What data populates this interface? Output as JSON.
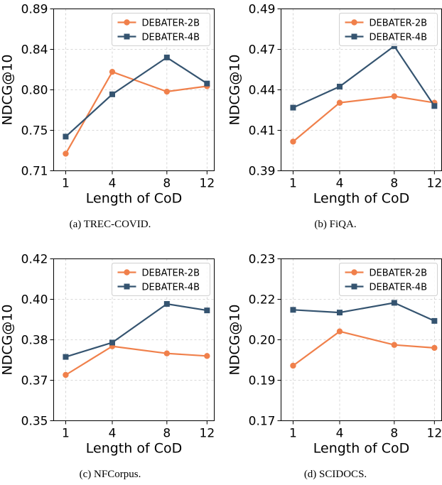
{
  "chart_data": [
    {
      "type": "line",
      "caption": "(a)  TREC-COVID.",
      "xlabel": "Length of CoD",
      "ylabel": "NDCG@10",
      "categories": [
        "1",
        "4",
        "8",
        "12"
      ],
      "ylim": [
        0.71,
        0.89
      ],
      "yticks": [
        "0.71",
        "0.75",
        "0.80",
        "0.84",
        "0.89"
      ],
      "grid": true,
      "legend": "top-right",
      "series": [
        {
          "name": "DEBATER-2B",
          "color": "#f0804b",
          "marker": "circle",
          "values": [
            0.729,
            0.82,
            0.798,
            0.804
          ]
        },
        {
          "name": "DEBATER-4B",
          "color": "#355470",
          "marker": "square",
          "values": [
            0.748,
            0.795,
            0.836,
            0.807
          ]
        }
      ]
    },
    {
      "type": "line",
      "caption": "(b)  FiQA.",
      "xlabel": "Length of CoD",
      "ylabel": "NDCG@10",
      "categories": [
        "1",
        "4",
        "8",
        "12"
      ],
      "ylim": [
        0.39,
        0.49
      ],
      "yticks": [
        "0.39",
        "0.41",
        "0.44",
        "0.47",
        "0.49"
      ],
      "grid": true,
      "legend": "top-right",
      "series": [
        {
          "name": "DEBATER-2B",
          "color": "#f0804b",
          "marker": "circle",
          "values": [
            0.408,
            0.432,
            0.436,
            0.432
          ]
        },
        {
          "name": "DEBATER-4B",
          "color": "#355470",
          "marker": "square",
          "values": [
            0.429,
            0.442,
            0.467,
            0.43
          ]
        }
      ]
    },
    {
      "type": "line",
      "caption": "(c)  NFCorpus.",
      "xlabel": "Length of CoD",
      "ylabel": "NDCG@10",
      "categories": [
        "1",
        "4",
        "8",
        "12"
      ],
      "ylim": [
        0.35,
        0.42
      ],
      "yticks": [
        "0.35",
        "0.37",
        "0.38",
        "0.40",
        "0.42"
      ],
      "grid": true,
      "legend": "top-right",
      "series": [
        {
          "name": "DEBATER-2B",
          "color": "#f0804b",
          "marker": "circle",
          "values": [
            0.3698,
            0.3822,
            0.3791,
            0.378
          ]
        },
        {
          "name": "DEBATER-4B",
          "color": "#355470",
          "marker": "square",
          "values": [
            0.3776,
            0.3838,
            0.4005,
            0.3977
          ]
        }
      ]
    },
    {
      "type": "line",
      "caption": "(d)  SCIDOCS.",
      "xlabel": "Length of CoD",
      "ylabel": "NDCG@10",
      "categories": [
        "1",
        "4",
        "8",
        "12"
      ],
      "ylim": [
        0.17,
        0.23
      ],
      "yticks": [
        "0.17",
        "0.19",
        "0.20",
        "0.22",
        "0.23"
      ],
      "grid": true,
      "legend": "top-right",
      "series": [
        {
          "name": "DEBATER-2B",
          "color": "#f0804b",
          "marker": "circle",
          "values": [
            0.1904,
            0.2031,
            0.1981,
            0.197
          ]
        },
        {
          "name": "DEBATER-4B",
          "color": "#355470",
          "marker": "square",
          "values": [
            0.2111,
            0.2101,
            0.2137,
            0.207
          ]
        }
      ]
    }
  ]
}
